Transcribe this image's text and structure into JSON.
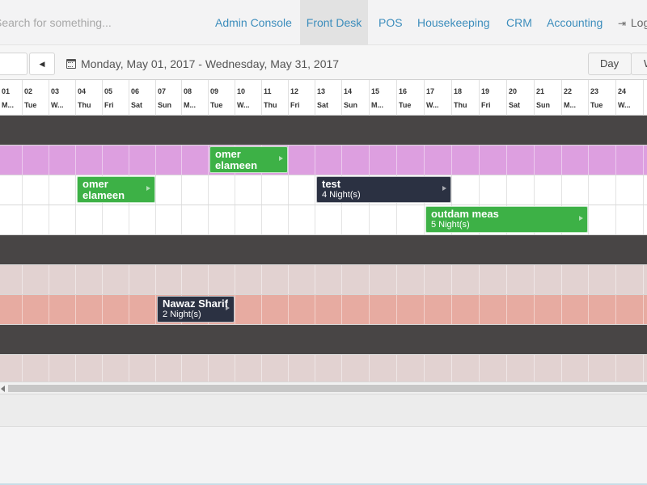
{
  "navbar": {
    "search_placeholder": "Search for something...",
    "links": [
      "Admin Console",
      "Front Desk",
      "POS",
      "Housekeeping",
      "CRM",
      "Accounting"
    ],
    "active_link": "Front Desk",
    "logout_label": "Log out"
  },
  "toolbar": {
    "date_range": "Monday, May 01, 2017 - Wednesday, May 31, 2017",
    "view_buttons": [
      "Day",
      "Week"
    ]
  },
  "colors": {
    "dark_row": "#484545",
    "lilac_row": "#dd9fe0",
    "rose_row": "#e2d2d1",
    "salmon_row": "#e7aba1",
    "white_row": "#ffffff",
    "green_booking": "#3db146",
    "dark_booking": "#2b3142",
    "link": "#3c8dbc"
  },
  "days": [
    {
      "num": "01",
      "name": "M..."
    },
    {
      "num": "02",
      "name": "Tue"
    },
    {
      "num": "03",
      "name": "W..."
    },
    {
      "num": "04",
      "name": "Thu"
    },
    {
      "num": "05",
      "name": "Fri"
    },
    {
      "num": "06",
      "name": "Sat"
    },
    {
      "num": "07",
      "name": "Sun"
    },
    {
      "num": "08",
      "name": "M..."
    },
    {
      "num": "09",
      "name": "Tue"
    },
    {
      "num": "10",
      "name": "W..."
    },
    {
      "num": "11",
      "name": "Thu"
    },
    {
      "num": "12",
      "name": "Fri"
    },
    {
      "num": "13",
      "name": "Sat"
    },
    {
      "num": "14",
      "name": "Sun"
    },
    {
      "num": "15",
      "name": "M..."
    },
    {
      "num": "16",
      "name": "Tue"
    },
    {
      "num": "17",
      "name": "W..."
    },
    {
      "num": "18",
      "name": "Thu"
    },
    {
      "num": "19",
      "name": "Fri"
    },
    {
      "num": "20",
      "name": "Sat"
    },
    {
      "num": "21",
      "name": "Sun"
    },
    {
      "num": "22",
      "name": "M..."
    },
    {
      "num": "23",
      "name": "Tue"
    },
    {
      "num": "24",
      "name": "W..."
    }
  ],
  "rows": [
    "dark_row",
    "lilac_row",
    "white_row",
    "white_row",
    "dark_row",
    "rose_row",
    "salmon_row",
    "dark_row",
    "rose_row"
  ],
  "bookings": [
    {
      "guest": "omer elameen",
      "nights": "",
      "color": "green_booking",
      "row": 1,
      "start_day": 9,
      "length": 3
    },
    {
      "guest": "omer elameen",
      "nights": "",
      "color": "green_booking",
      "row": 2,
      "start_day": 4,
      "length": 3
    },
    {
      "guest": "test",
      "nights": "4 Night(s)",
      "color": "dark_booking",
      "row": 2,
      "start_day": 13,
      "length": 5
    },
    {
      "guest": "outdam meas",
      "nights": "5 Night(s)",
      "color": "green_booking",
      "row": 3,
      "start_day": 17,
      "length": 6
    },
    {
      "guest": "Nawaz Sharif",
      "nights": "2 Night(s)",
      "color": "dark_booking",
      "row": 6,
      "start_day": 7,
      "length": 3
    }
  ]
}
